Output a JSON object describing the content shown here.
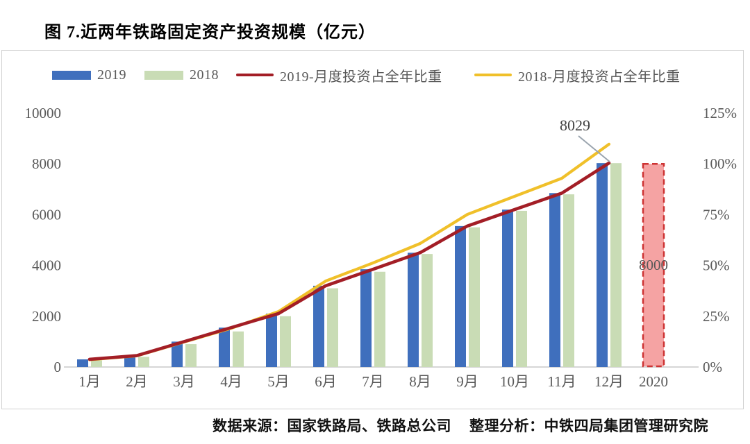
{
  "title": "图 7.近两年铁路固定资产投资规模（亿元）",
  "legend": {
    "items": [
      {
        "label": "2019",
        "type": "bar",
        "color": "#3f6fbd"
      },
      {
        "label": "2018",
        "type": "bar",
        "color": "#c9dcb5"
      },
      {
        "label": "2019-月度投资占全年比重",
        "type": "line",
        "color": "#a31e26"
      },
      {
        "label": "2018-月度投资占全年比重",
        "type": "line",
        "color": "#f0c02a"
      }
    ]
  },
  "footer": {
    "source": "数据来源：国家铁路局、铁路总公司",
    "analysis": "整理分析：中铁四局集团管理研究院"
  },
  "chart_data": {
    "type": "combo",
    "title": "图 7.近两年铁路固定资产投资规模（亿元）",
    "categories": [
      "1月",
      "2月",
      "3月",
      "4月",
      "5月",
      "6月",
      "7月",
      "8月",
      "9月",
      "10月",
      "11月",
      "12月",
      "2020"
    ],
    "series": [
      {
        "name": "2019",
        "type": "bar",
        "axis": "left",
        "color": "#3f6fbd",
        "values": [
          300,
          450,
          1000,
          1550,
          2100,
          3200,
          3850,
          4500,
          5550,
          6200,
          6850,
          8029
        ]
      },
      {
        "name": "2018",
        "type": "bar",
        "axis": "left",
        "color": "#c9dcb5",
        "values": [
          260,
          400,
          900,
          1400,
          2000,
          3100,
          3750,
          4450,
          5500,
          6150,
          6800,
          8028
        ]
      },
      {
        "name": "2019-月度投资占全年比重",
        "type": "line",
        "axis": "right",
        "color": "#a31e26",
        "values_pct": [
          3.8,
          5.6,
          12.5,
          19.4,
          26.3,
          40.0,
          48.1,
          56.3,
          69.4,
          77.5,
          85.6,
          100.4
        ]
      },
      {
        "name": "2018-月度投资占全年比重",
        "type": "line",
        "axis": "right",
        "color": "#f0c02a",
        "values_pct": [
          3.6,
          5.5,
          12.3,
          19.1,
          27.3,
          42.3,
          51.2,
          60.8,
          75.1,
          84.0,
          92.9,
          109.7
        ]
      }
    ],
    "left_axis": {
      "ticks": [
        0,
        2000,
        4000,
        6000,
        8000,
        10000
      ],
      "max": 10000
    },
    "right_axis": {
      "ticks": [
        "0%",
        "25%",
        "50%",
        "75%",
        "100%",
        "125%"
      ],
      "step_pct": 25,
      "max_pct": 125
    },
    "annotations": {
      "dec_2019": {
        "label": "8029",
        "series": "2019",
        "category": "12月"
      },
      "target_2020": {
        "label": "8000",
        "value": 8000,
        "category": "2020",
        "fill": "#f5a3a3",
        "stroke": "#cd3333",
        "style": "dashed"
      }
    },
    "grid": "off",
    "legend_position": "top"
  }
}
